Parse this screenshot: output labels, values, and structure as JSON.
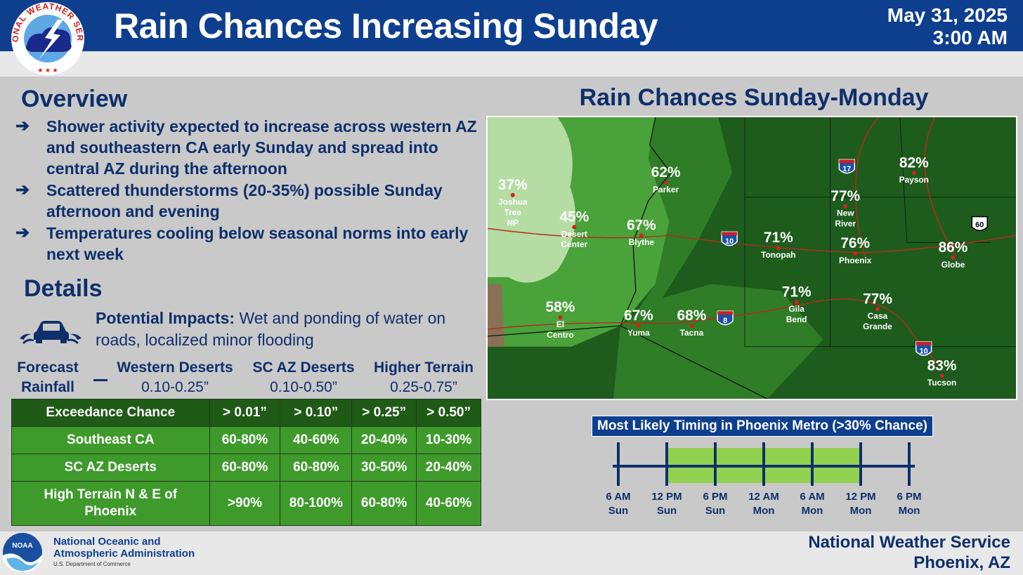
{
  "header": {
    "title": "Rain Chances Increasing Sunday",
    "date": "May 31, 2025",
    "time": "3:00 AM",
    "logo_text": "NATIONAL WEATHER SERVICE"
  },
  "overview": {
    "heading": "Overview",
    "bullets": [
      "Shower activity expected to increase across western AZ and southeastern CA early Sunday and spread into central AZ during the afternoon",
      "Scattered thunderstorms (20-35%) possible Sunday afternoon and evening",
      "Temperatures cooling below seasonal norms into early next week"
    ],
    "bullet_icon": "arrow-right-icon"
  },
  "details": {
    "heading": "Details",
    "impacts_label": "Potential Impacts:",
    "impacts_text": "Wet and ponding of water on roads, localized minor flooding",
    "impacts_icon": "car-splash-icon"
  },
  "forecast_rainfall": {
    "label_line1": "Forecast",
    "label_line2": "Rainfall",
    "columns": [
      {
        "name": "Western Deserts",
        "value": "0.10-0.25”"
      },
      {
        "name": "SC AZ Deserts",
        "value": "0.10-0.50”"
      },
      {
        "name": "Higher Terrain",
        "value": "0.25-0.75”"
      }
    ]
  },
  "exceedance_table": {
    "headers": [
      "Exceedance Chance",
      "> 0.01”",
      "> 0.10”",
      "> 0.25”",
      "> 0.50”"
    ],
    "rows": [
      [
        "Southeast CA",
        "60-80%",
        "40-60%",
        "20-40%",
        "10-30%"
      ],
      [
        "SC AZ Deserts",
        "60-80%",
        "60-80%",
        "30-50%",
        "20-40%"
      ],
      [
        "High Terrain N & E of Phoenix",
        ">90%",
        "80-100%",
        "60-80%",
        "40-60%"
      ]
    ]
  },
  "map": {
    "title": "Rain Chances Sunday-Monday",
    "cities": [
      {
        "pct": "37%",
        "name": [
          "Joshua",
          "Tree",
          "NP"
        ]
      },
      {
        "pct": "45%",
        "name": [
          "Desert",
          "Center"
        ]
      },
      {
        "pct": "62%",
        "name": [
          "Parker"
        ]
      },
      {
        "pct": "67%",
        "name": [
          "Blythe"
        ]
      },
      {
        "pct": "58%",
        "name": [
          "El",
          "Centro"
        ]
      },
      {
        "pct": "67%",
        "name": [
          "Yuma"
        ]
      },
      {
        "pct": "68%",
        "name": [
          "Tacna"
        ]
      },
      {
        "pct": "71%",
        "name": [
          "Tonopah"
        ]
      },
      {
        "pct": "71%",
        "name": [
          "Gila",
          "Bend"
        ]
      },
      {
        "pct": "77%",
        "name": [
          "New",
          "River"
        ]
      },
      {
        "pct": "76%",
        "name": [
          "Phoenix"
        ]
      },
      {
        "pct": "77%",
        "name": [
          "Casa",
          "Grande"
        ]
      },
      {
        "pct": "82%",
        "name": [
          "Payson"
        ]
      },
      {
        "pct": "86%",
        "name": [
          "Globe"
        ]
      },
      {
        "pct": "83%",
        "name": [
          "Tucson"
        ]
      }
    ],
    "shields": [
      "17",
      "10",
      "60",
      "8",
      "10"
    ],
    "colors": {
      "light": "#b5dca3",
      "mid": "#4aa23a",
      "dark": "#1d5c1c"
    }
  },
  "timing": {
    "title": "Most Likely Timing in Phoenix Metro (>30% Chance)",
    "labels": [
      [
        "6 AM",
        "Sun"
      ],
      [
        "12 PM",
        "Sun"
      ],
      [
        "6 PM",
        "Sun"
      ],
      [
        "12 AM",
        "Mon"
      ],
      [
        "6 AM",
        "Mon"
      ],
      [
        "12 PM",
        "Mon"
      ],
      [
        "6 PM",
        "Mon"
      ]
    ],
    "highlight_start_index": 1,
    "highlight_end_index": 5,
    "highlight_color": "#92d050"
  },
  "footer": {
    "noaa_line1": "National Oceanic and",
    "noaa_line2": "Atmospheric Administration",
    "noaa_sub": "U.S. Department of Commerce",
    "noaa_logo_text": "NOAA",
    "nws_line1": "National Weather Service",
    "nws_line2": "Phoenix, AZ"
  }
}
